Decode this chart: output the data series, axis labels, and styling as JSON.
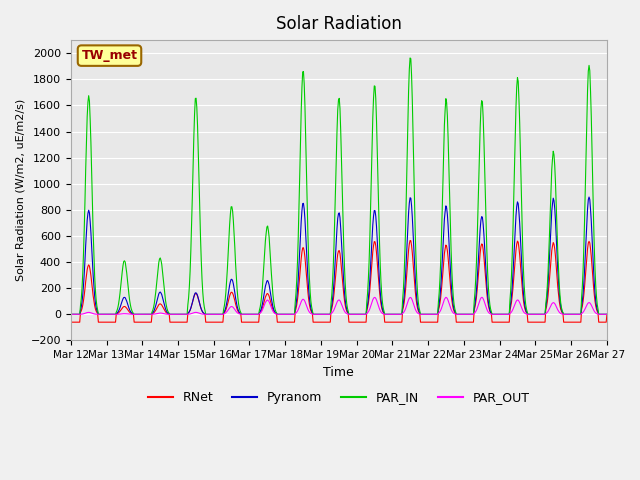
{
  "title": "Solar Radiation",
  "ylabel": "Solar Radiation (W/m2, uE/m2/s)",
  "xlabel": "Time",
  "ylim": [
    -200,
    2100
  ],
  "yticks": [
    -200,
    0,
    200,
    400,
    600,
    800,
    1000,
    1200,
    1400,
    1600,
    1800,
    2000
  ],
  "xtick_positions": [
    12,
    13,
    14,
    15,
    16,
    17,
    18,
    19,
    20,
    21,
    22,
    23,
    24,
    25,
    26,
    27
  ],
  "xtick_labels": [
    "Mar 12",
    "Mar 13",
    "Mar 14",
    "Mar 15",
    "Mar 16",
    "Mar 17",
    "Mar 18",
    "Mar 19",
    "Mar 20",
    "Mar 21",
    "Mar 22",
    "Mar 23",
    "Mar 24",
    "Mar 25",
    "Mar 26",
    "Mar 27"
  ],
  "station_label": "TW_met",
  "colors": {
    "RNet": "#ff0000",
    "Pyranom": "#0000cc",
    "PAR_IN": "#00cc00",
    "PAR_OUT": "#ff00ff"
  },
  "legend_labels": [
    "RNet",
    "Pyranom",
    "PAR_IN",
    "PAR_OUT"
  ],
  "plot_bg_color": "#e8e8e8",
  "fig_bg_color": "#f0f0f0",
  "grid_color": "#ffffff",
  "PAR_IN_peaks": [
    1680,
    410,
    430,
    1660,
    830,
    680,
    1860,
    1660,
    1760,
    1980,
    1650,
    1640,
    1810,
    1250,
    1910
  ],
  "Pyranom_peaks": [
    800,
    130,
    170,
    165,
    270,
    260,
    850,
    780,
    800,
    900,
    830,
    750,
    860,
    890,
    900
  ],
  "RNet_peaks": [
    380,
    60,
    80,
    160,
    170,
    160,
    510,
    490,
    560,
    570,
    530,
    540,
    560,
    550,
    560
  ],
  "PAR_OUT_peaks": [
    15,
    5,
    10,
    15,
    60,
    110,
    115,
    110,
    130,
    130,
    130,
    130,
    110,
    90,
    90
  ]
}
